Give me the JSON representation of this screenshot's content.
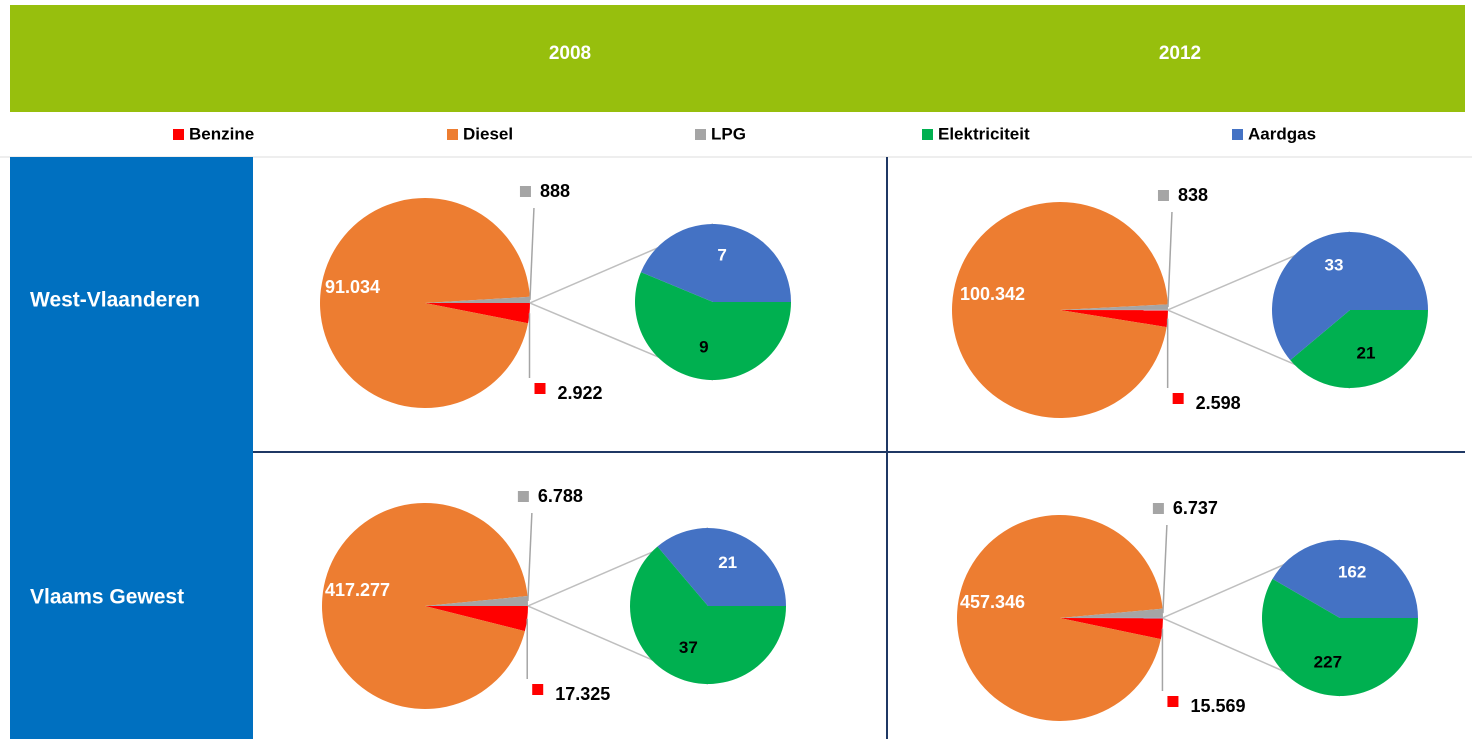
{
  "columns": [
    "2008",
    "2012"
  ],
  "rows": [
    "West-Vlaanderen",
    "Vlaams Gewest"
  ],
  "legend": {
    "categories": [
      "Benzine",
      "Diesel",
      "LPG",
      "Elektriciteit",
      "Aardgas"
    ],
    "colors": [
      "#ff0000",
      "#ed7d31",
      "#a5a5a5",
      "#00b050",
      "#4472c4"
    ]
  },
  "chart_data": [
    {
      "type": "pie",
      "values": [
        2922,
        91034,
        888,
        9,
        7
      ],
      "value_labels": [
        "2.922",
        "91.034",
        "888",
        "9",
        "7"
      ]
    },
    {
      "type": "pie",
      "values": [
        2598,
        100342,
        838,
        21,
        33
      ],
      "value_labels": [
        "2.598",
        "100.342",
        "838",
        "21",
        "33"
      ]
    },
    {
      "type": "pie",
      "values": [
        17325,
        417277,
        6788,
        37,
        21
      ],
      "value_labels": [
        "17.325",
        "417.277",
        "6.788",
        "37",
        "21"
      ]
    },
    {
      "type": "pie",
      "values": [
        15569,
        457346,
        6737,
        227,
        162
      ],
      "value_labels": [
        "15.569",
        "457.346",
        "6.737",
        "227",
        "162"
      ]
    }
  ]
}
